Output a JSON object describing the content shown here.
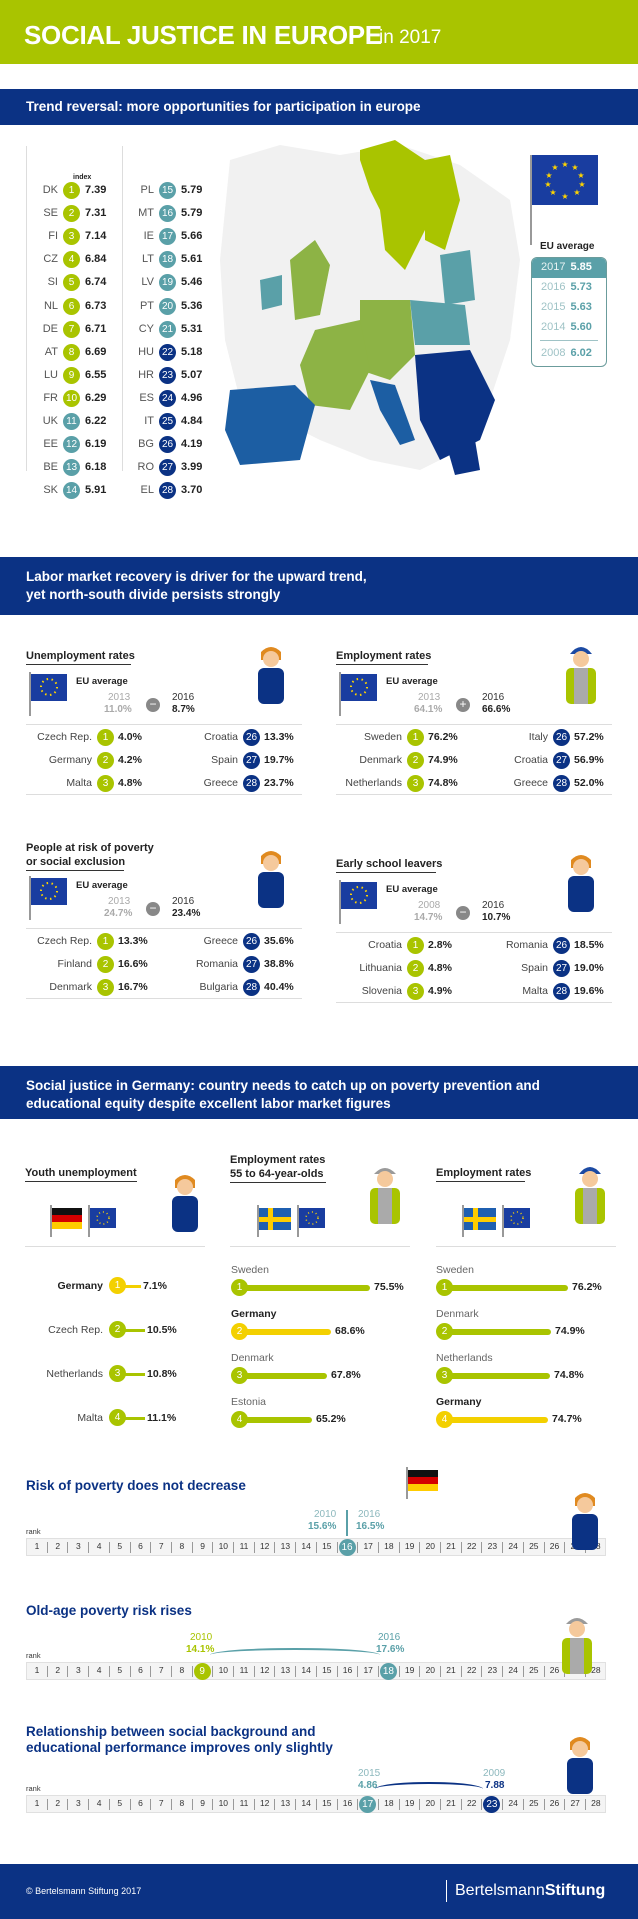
{
  "header": {
    "title": "SOCIAL JUSTICE IN EUROPE",
    "year": "in 2017"
  },
  "s1": {
    "band": "Trend reversal: more opportunities for participation in europe",
    "index_label": "index",
    "left": [
      [
        "DK",
        "1",
        "7.39"
      ],
      [
        "SE",
        "2",
        "7.31"
      ],
      [
        "FI",
        "3",
        "7.14"
      ],
      [
        "CZ",
        "4",
        "6.84"
      ],
      [
        "SI",
        "5",
        "6.74"
      ],
      [
        "NL",
        "6",
        "6.73"
      ],
      [
        "DE",
        "7",
        "6.71"
      ],
      [
        "AT",
        "8",
        "6.69"
      ],
      [
        "LU",
        "9",
        "6.55"
      ],
      [
        "FR",
        "10",
        "6.29"
      ],
      [
        "UK",
        "11",
        "6.22"
      ],
      [
        "EE",
        "12",
        "6.19"
      ],
      [
        "BE",
        "13",
        "6.18"
      ],
      [
        "SK",
        "14",
        "5.91"
      ]
    ],
    "right": [
      [
        "PL",
        "15",
        "5.79"
      ],
      [
        "MT",
        "16",
        "5.79"
      ],
      [
        "IE",
        "17",
        "5.66"
      ],
      [
        "LT",
        "18",
        "5.61"
      ],
      [
        "LV",
        "19",
        "5.46"
      ],
      [
        "PT",
        "20",
        "5.36"
      ],
      [
        "CY",
        "21",
        "5.31"
      ],
      [
        "HU",
        "22",
        "5.18"
      ],
      [
        "HR",
        "23",
        "5.07"
      ],
      [
        "ES",
        "24",
        "4.96"
      ],
      [
        "IT",
        "25",
        "4.84"
      ],
      [
        "BG",
        "26",
        "4.19"
      ],
      [
        "RO",
        "27",
        "3.99"
      ],
      [
        "EL",
        "28",
        "3.70"
      ]
    ],
    "eu": {
      "title": "EU average",
      "rows": [
        [
          "2017",
          "5.85"
        ],
        [
          "2016",
          "5.73"
        ],
        [
          "2015",
          "5.63"
        ],
        [
          "2014",
          "5.60"
        ],
        [
          "2008",
          "6.02"
        ]
      ]
    }
  },
  "s2": {
    "band_l1": "Labor market recovery is driver for the upward trend,",
    "band_l2": "yet north-south divide persists strongly",
    "eu_avg": "EU average",
    "unemp": {
      "title": "Unemployment rates",
      "y1": "2013",
      "v1": "11.0%",
      "y2": "2016",
      "v2": "8.7%",
      "best": [
        [
          "Czech Rep.",
          "1",
          "4.0%"
        ],
        [
          "Germany",
          "2",
          "4.2%"
        ],
        [
          "Malta",
          "3",
          "4.8%"
        ]
      ],
      "worst": [
        [
          "Croatia",
          "26",
          "13.3%"
        ],
        [
          "Spain",
          "27",
          "19.7%"
        ],
        [
          "Greece",
          "28",
          "23.7%"
        ]
      ]
    },
    "emp": {
      "title": "Employment rates",
      "y1": "2013",
      "v1": "64.1%",
      "y2": "2016",
      "v2": "66.6%",
      "best": [
        [
          "Sweden",
          "1",
          "76.2%"
        ],
        [
          "Denmark",
          "2",
          "74.9%"
        ],
        [
          "Netherlands",
          "3",
          "74.8%"
        ]
      ],
      "worst": [
        [
          "Italy",
          "26",
          "57.2%"
        ],
        [
          "Croatia",
          "27",
          "56.9%"
        ],
        [
          "Greece",
          "28",
          "52.0%"
        ]
      ]
    },
    "pov": {
      "title_l1": "People at risk of poverty",
      "title_l2": "or social exclusion",
      "y1": "2013",
      "v1": "24.7%",
      "y2": "2016",
      "v2": "23.4%",
      "best": [
        [
          "Czech Rep.",
          "1",
          "13.3%"
        ],
        [
          "Finland",
          "2",
          "16.6%"
        ],
        [
          "Denmark",
          "3",
          "16.7%"
        ]
      ],
      "worst": [
        [
          "Greece",
          "26",
          "35.6%"
        ],
        [
          "Romania",
          "27",
          "38.8%"
        ],
        [
          "Bulgaria",
          "28",
          "40.4%"
        ]
      ]
    },
    "esl": {
      "title": "Early school leavers",
      "y1": "2008",
      "v1": "14.7%",
      "y2": "2016",
      "v2": "10.7%",
      "best": [
        [
          "Croatia",
          "1",
          "2.8%"
        ],
        [
          "Lithuania",
          "2",
          "4.8%"
        ],
        [
          "Slovenia",
          "3",
          "4.9%"
        ]
      ],
      "worst": [
        [
          "Romania",
          "26",
          "18.5%"
        ],
        [
          "Spain",
          "27",
          "19.0%"
        ],
        [
          "Malta",
          "28",
          "19.6%"
        ]
      ]
    }
  },
  "s3": {
    "band_l1": "Social justice in Germany: country needs to catch up on poverty prevention and",
    "band_l2": "educational equity despite excellent labor market figures",
    "youth": {
      "title": "Youth unemployment",
      "rows": [
        [
          "Germany",
          "1",
          "7.1%"
        ],
        [
          "Czech Rep.",
          "2",
          "10.5%"
        ],
        [
          "Netherlands",
          "3",
          "10.8%"
        ],
        [
          "Malta",
          "4",
          "11.1%"
        ]
      ]
    },
    "emp55": {
      "title_l1": "Employment rates",
      "title_l2": "55 to 64-year-olds",
      "rows": [
        [
          "Sweden",
          "1",
          "75.5%"
        ],
        [
          "Germany",
          "2",
          "68.6%"
        ],
        [
          "Denmark",
          "3",
          "67.8%"
        ],
        [
          "Estonia",
          "4",
          "65.2%"
        ]
      ]
    },
    "emp": {
      "title": "Employment rates",
      "rows": [
        [
          "Sweden",
          "1",
          "76.2%"
        ],
        [
          "Denmark",
          "2",
          "74.9%"
        ],
        [
          "Netherlands",
          "3",
          "74.8%"
        ],
        [
          "Germany",
          "4",
          "74.7%"
        ]
      ]
    }
  },
  "s4": {
    "rank": "rank",
    "pov": {
      "title": "Risk of poverty does not decrease",
      "y1": "2010",
      "v1": "15.6%",
      "y2": "2016",
      "v2": "16.5%",
      "badge": "16"
    },
    "old": {
      "title": "Old-age poverty risk rises",
      "y1": "2010",
      "v1": "14.1%",
      "y2": "2016",
      "v2": "17.6%",
      "b1": "9",
      "b2": "18"
    },
    "edu": {
      "title_l1": "Relationship between social background and",
      "title_l2": "educational performance improves only slightly",
      "y1": "2015",
      "v1": "4.86",
      "y2": "2009",
      "v2": "7.88",
      "b1": "17",
      "b2": "23"
    }
  },
  "footer": {
    "copy": "© Bertelsmann Stiftung 2017",
    "brand_a": "Bertelsmann",
    "brand_b": "Stiftung"
  },
  "colors": {
    "green": "#a9c400",
    "mid": "#5aa0a8",
    "navy": "#0b3284",
    "yellow": "#f3d000"
  }
}
